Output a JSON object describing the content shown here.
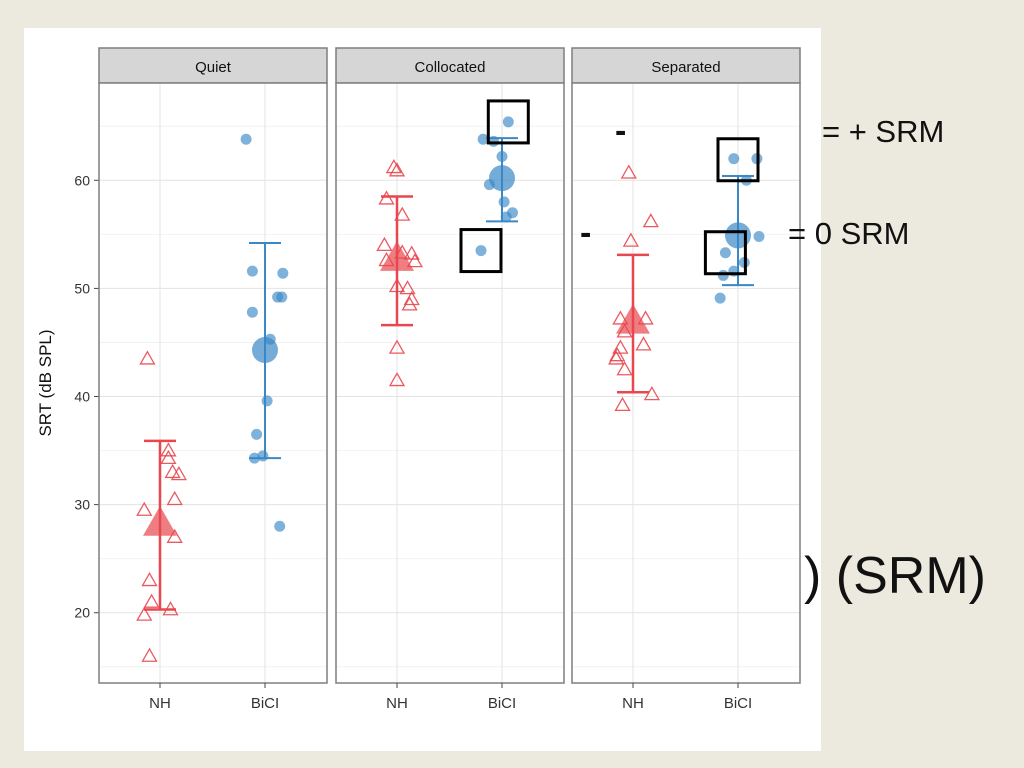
{
  "annotations": {
    "plus_srm": "=  + SRM",
    "zero_srm": "=  0 SRM",
    "srm_partial": ") (SRM)",
    "dash_1": "-",
    "dash_2": "-"
  },
  "chart_data": {
    "type": "scatter",
    "ylabel": "SRT (dB SPL)",
    "xlabel": "",
    "ylim": [
      13.5,
      69
    ],
    "yticks": [
      20,
      30,
      40,
      50,
      60
    ],
    "grid": true,
    "groups": [
      "NH",
      "BiCI"
    ],
    "colors": {
      "NH": "#E8474F",
      "BiCI": "#3A88C6"
    },
    "markers": {
      "NH": "open-triangle",
      "BiCI": "filled-circle"
    },
    "panels": [
      {
        "name": "Quiet",
        "groups": [
          {
            "group": "NH",
            "mean": 28.3,
            "upper": 35.9,
            "lower": 20.3,
            "points": [
              [
                -0.12,
                43.5
              ],
              [
                0.08,
                35.0
              ],
              [
                0.08,
                34.3
              ],
              [
                0.12,
                33.0
              ],
              [
                0.18,
                32.8
              ],
              [
                0.14,
                30.5
              ],
              [
                -0.15,
                29.5
              ],
              [
                0.14,
                27.0
              ],
              [
                -0.1,
                23.0
              ],
              [
                -0.08,
                21.0
              ],
              [
                -0.15,
                19.8
              ],
              [
                0.1,
                20.3
              ],
              [
                -0.1,
                16.0
              ]
            ]
          },
          {
            "group": "BiCI",
            "mean": 44.3,
            "upper": 54.2,
            "lower": 34.3,
            "points": [
              [
                -0.18,
                63.8
              ],
              [
                -0.12,
                51.6
              ],
              [
                0.17,
                51.4
              ],
              [
                0.12,
                49.2
              ],
              [
                0.16,
                49.2
              ],
              [
                -0.12,
                47.8
              ],
              [
                0.05,
                45.3
              ],
              [
                0.02,
                39.6
              ],
              [
                -0.08,
                36.5
              ],
              [
                -0.1,
                34.3
              ],
              [
                -0.02,
                34.5
              ],
              [
                0.14,
                28.0
              ]
            ]
          }
        ]
      },
      {
        "name": "Collocated",
        "groups": [
          {
            "group": "NH",
            "mean": 52.8,
            "upper": 58.5,
            "lower": 46.6,
            "points": [
              [
                -0.03,
                61.2
              ],
              [
                0.0,
                60.9
              ],
              [
                -0.1,
                58.3
              ],
              [
                0.05,
                56.8
              ],
              [
                -0.12,
                54.0
              ],
              [
                0.05,
                53.3
              ],
              [
                0.14,
                53.2
              ],
              [
                -0.1,
                52.6
              ],
              [
                0.17,
                52.5
              ],
              [
                0.1,
                50.0
              ],
              [
                0.14,
                49.0
              ],
              [
                0.12,
                48.5
              ],
              [
                0.0,
                50.2
              ],
              [
                0.0,
                44.5
              ],
              [
                0.0,
                41.5
              ]
            ]
          },
          {
            "group": "BiCI",
            "mean": 60.2,
            "upper": 63.9,
            "lower": 56.2,
            "points": [
              [
                0.06,
                65.4
              ],
              [
                -0.18,
                63.8
              ],
              [
                -0.08,
                63.6
              ],
              [
                0.0,
                62.2
              ],
              [
                -0.12,
                59.6
              ],
              [
                0.02,
                58.0
              ],
              [
                0.1,
                57.0
              ],
              [
                0.04,
                56.6
              ],
              [
                -0.2,
                53.5
              ]
            ]
          }
        ]
      },
      {
        "name": "Separated",
        "groups": [
          {
            "group": "NH",
            "mean": 47.0,
            "upper": 53.1,
            "lower": 40.4,
            "points": [
              [
                -0.04,
                60.7
              ],
              [
                0.17,
                56.2
              ],
              [
                -0.02,
                54.4
              ],
              [
                -0.12,
                47.2
              ],
              [
                0.12,
                47.2
              ],
              [
                -0.08,
                46.0
              ],
              [
                -0.12,
                44.5
              ],
              [
                0.1,
                44.8
              ],
              [
                -0.15,
                43.8
              ],
              [
                -0.16,
                43.5
              ],
              [
                -0.08,
                42.5
              ],
              [
                0.18,
                40.2
              ],
              [
                -0.1,
                39.2
              ]
            ]
          },
          {
            "group": "BiCI",
            "mean": 54.9,
            "upper": 60.4,
            "lower": 50.3,
            "points": [
              [
                -0.04,
                62.0
              ],
              [
                0.18,
                62.0
              ],
              [
                0.08,
                60.0
              ],
              [
                0.2,
                54.8
              ],
              [
                -0.12,
                53.3
              ],
              [
                0.06,
                52.4
              ],
              [
                -0.04,
                51.6
              ],
              [
                -0.14,
                51.2
              ],
              [
                -0.17,
                49.1
              ]
            ]
          }
        ]
      }
    ],
    "highlight_boxes": [
      {
        "panel": 1,
        "group": "BiCI",
        "x_offset": 0.06,
        "y": 65.4
      },
      {
        "panel": 1,
        "group": "BiCI",
        "x_offset": -0.2,
        "y": 53.5
      },
      {
        "panel": 2,
        "group": "BiCI",
        "x_offset": 0.0,
        "y": 61.9
      },
      {
        "panel": 2,
        "group": "BiCI",
        "x_offset": -0.12,
        "y": 53.3
      }
    ]
  }
}
